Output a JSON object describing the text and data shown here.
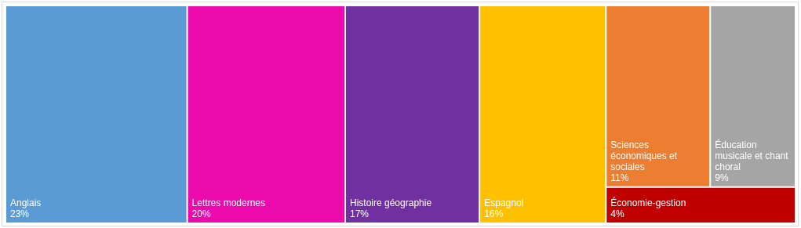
{
  "chart_data": {
    "type": "other",
    "categories": [
      "Anglais",
      "Lettres modernes",
      "Histoire géographie",
      "Espagnol",
      "Sciences économiques et sociales",
      "Éducation musicale et chant choral",
      "Économie-gestion"
    ],
    "values": [
      23,
      20,
      17,
      16,
      11,
      9,
      4
    ],
    "value_labels": [
      "23%",
      "20%",
      "17%",
      "16%",
      "11%",
      "9%",
      "4%"
    ],
    "colors": [
      "#5b9bd5",
      "#ec0aad",
      "#7030a0",
      "#ffc000",
      "#ed7d31",
      "#a5a5a5",
      "#c00000"
    ]
  }
}
